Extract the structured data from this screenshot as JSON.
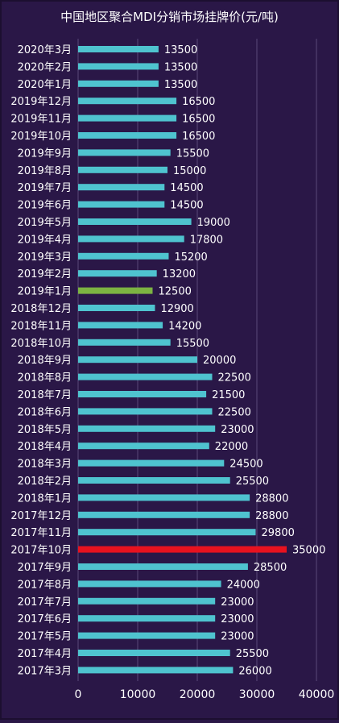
{
  "chart_data": {
    "type": "bar",
    "orientation": "horizontal",
    "title": "中国地区聚合MDI分销市场挂牌价(元/吨)",
    "categories": [
      "2020年3月",
      "2020年2月",
      "2020年1月",
      "2019年12月",
      "2019年11月",
      "2019年10月",
      "2019年9月",
      "2019年8月",
      "2019年7月",
      "2019年6月",
      "2019年5月",
      "2019年4月",
      "2019年3月",
      "2019年2月",
      "2019年1月",
      "2018年12月",
      "2018年11月",
      "2018年10月",
      "2018年9月",
      "2018年8月",
      "2018年7月",
      "2018年6月",
      "2018年5月",
      "2018年4月",
      "2018年3月",
      "2018年2月",
      "2018年1月",
      "2017年12月",
      "2017年11月",
      "2017年10月",
      "2017年9月",
      "2017年8月",
      "2017年7月",
      "2017年6月",
      "2017年5月",
      "2017年4月",
      "2017年3月"
    ],
    "values": [
      13500,
      13500,
      13500,
      16500,
      16500,
      16500,
      15500,
      15000,
      14500,
      14500,
      19000,
      17800,
      15200,
      13200,
      12500,
      12900,
      14200,
      15500,
      20000,
      22500,
      21500,
      22500,
      23000,
      22000,
      24500,
      25500,
      28800,
      28800,
      29800,
      35000,
      28500,
      24000,
      23000,
      23000,
      23000,
      25500,
      26000
    ],
    "xlim": [
      0,
      40000
    ],
    "xticks": [
      0,
      10000,
      20000,
      30000,
      40000
    ],
    "grid": true,
    "colors": {
      "background": "#2a1747",
      "bar_default": "#4fc3cf",
      "bar_highlight_low": "#7cb342",
      "bar_highlight_high": "#e8121f",
      "text": "#ffffff",
      "grid": "#5a4a78"
    },
    "highlights": {
      "2019年1月": "bar_highlight_low",
      "2017年10月": "bar_highlight_high"
    }
  }
}
